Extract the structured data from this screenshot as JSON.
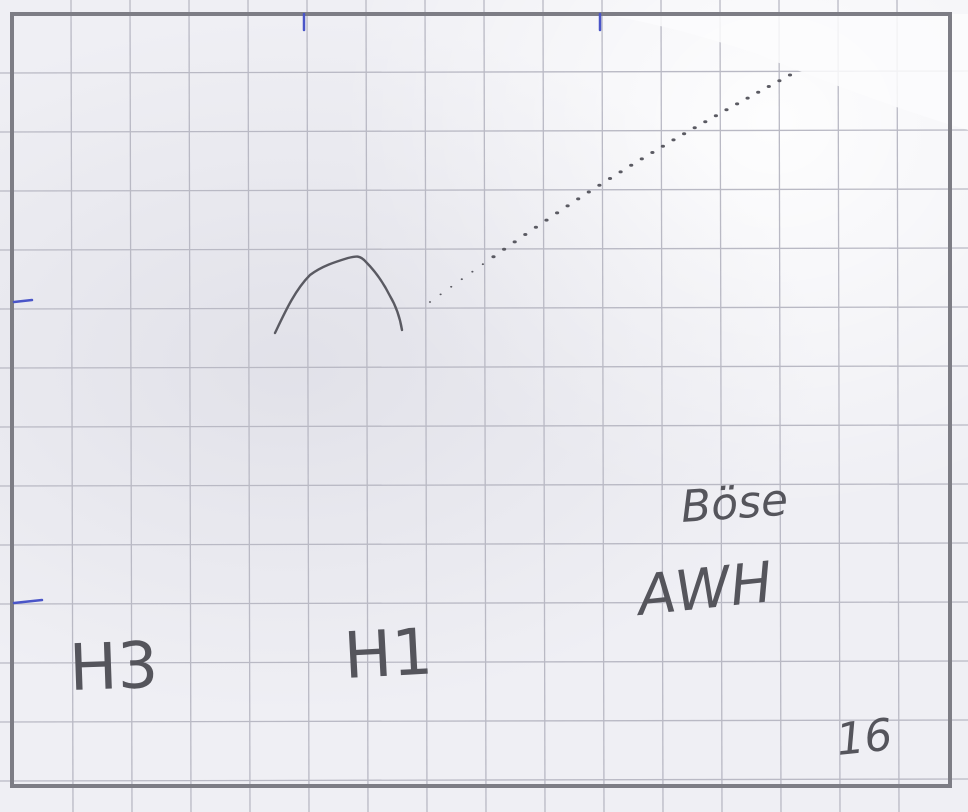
{
  "sheet": {
    "paper_color": "#efeff4",
    "grid_color": "#b9b9c4",
    "frame_color": "#7d7d85",
    "pencil_color": "#55555c",
    "tick_color": "#4a55c8"
  },
  "labels": {
    "left_group": "H3",
    "center_group": "H1",
    "author_top": "Böse",
    "author_bottom": "AWH",
    "page_number": "16"
  }
}
